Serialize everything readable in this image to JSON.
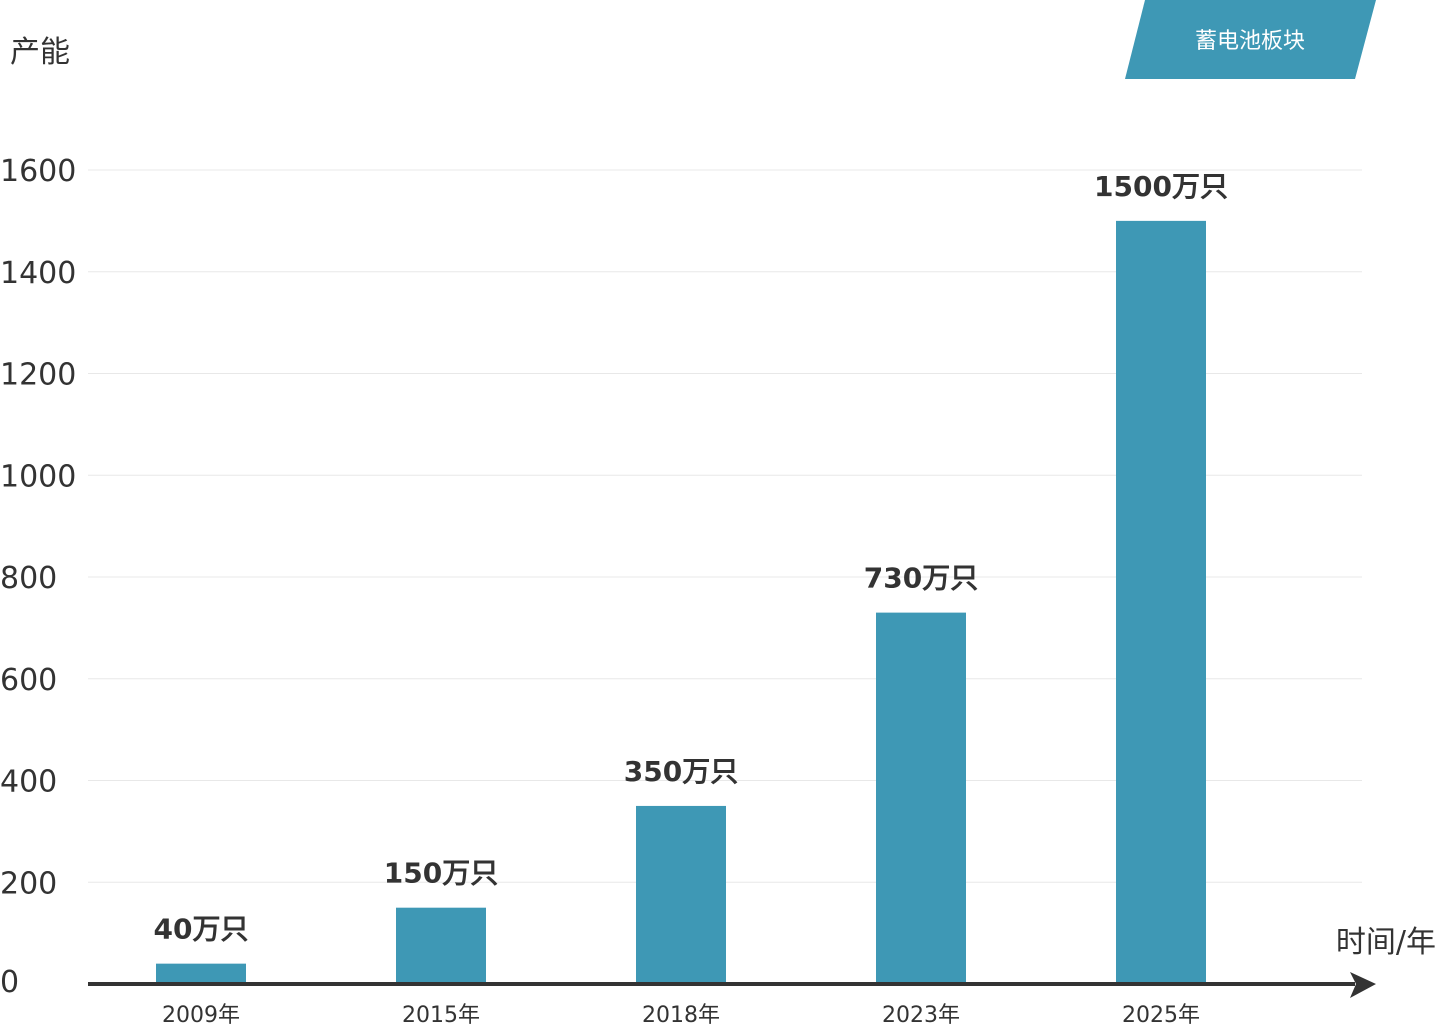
{
  "badge": {
    "label": "蓄电池板块"
  },
  "chart_data": {
    "type": "bar",
    "title": "",
    "ylabel": "产能",
    "xlabel": "时间/年",
    "categories": [
      "2009年",
      "2015年",
      "2018年",
      "2023年",
      "2025年"
    ],
    "values": [
      40,
      150,
      350,
      730,
      1500
    ],
    "value_labels": [
      "40万只",
      "150万只",
      "350万只",
      "730万只",
      "1500万只"
    ],
    "ylim": [
      0,
      1600
    ],
    "yticks": [
      0,
      200,
      400,
      600,
      800,
      1000,
      1200,
      1400,
      1600
    ],
    "grid": true,
    "colors": {
      "bar": "#3e98b5",
      "badge": "#3e98b5",
      "axis": "#333333"
    }
  }
}
